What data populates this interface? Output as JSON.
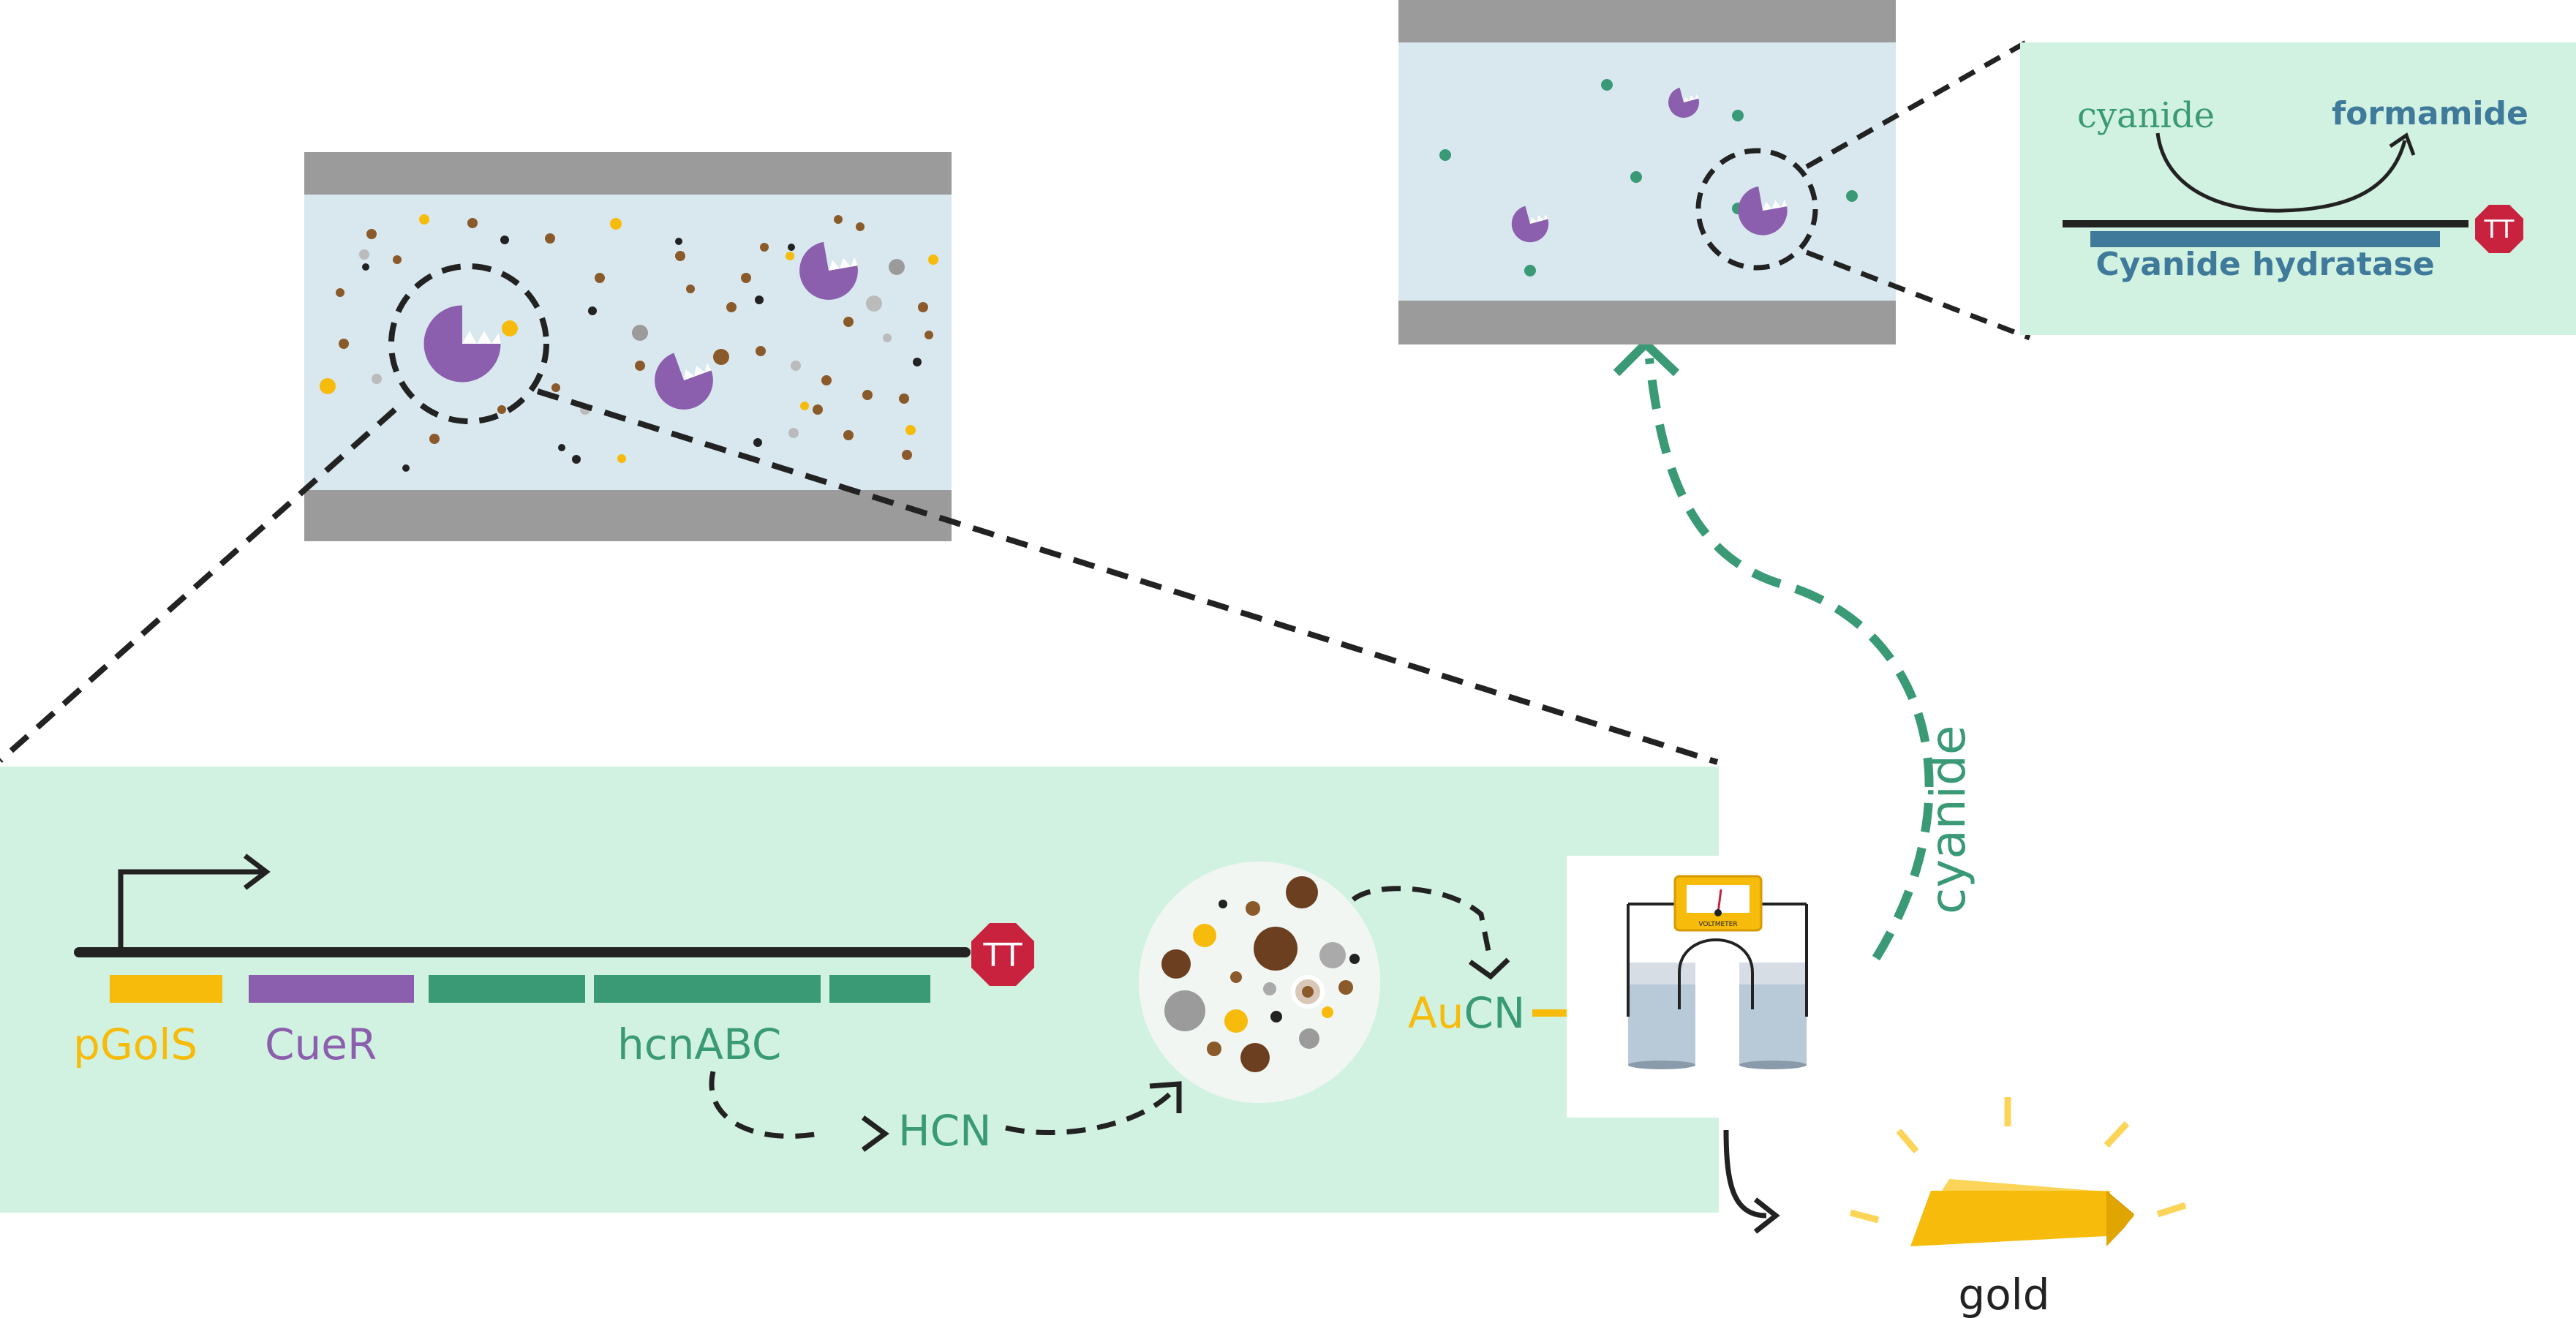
{
  "labels": {
    "promoter": "pGolS",
    "regulator": "CueR",
    "operon": "hcnABC",
    "hcn": "HCN",
    "au": "Au",
    "cn": "CN",
    "cyanide_arrow": "cyanide",
    "cyanide_top": "cyanide",
    "formamide": "formamide",
    "enzyme": "Cyanide hydratase",
    "terminator_left": "TT",
    "terminator_right": "TT",
    "voltmeter": "VOLTMETER",
    "gold": "gold"
  },
  "colors": {
    "green_panel": "#d2f2e1",
    "channel": "#d9e8ee",
    "wall": "#9b9b9b",
    "purple": "#8b5fad",
    "green": "#3a9a76",
    "gold": "#f6bb0b",
    "blue": "#3f7a9b",
    "red": "#c8223f",
    "dark": "#222222"
  },
  "icons": [
    "promoter-arrow-icon",
    "terminator-icon",
    "bacterium-icon",
    "ore-particle-icon",
    "electrochemical-cell-icon",
    "voltmeter-icon",
    "gold-bar-icon"
  ]
}
